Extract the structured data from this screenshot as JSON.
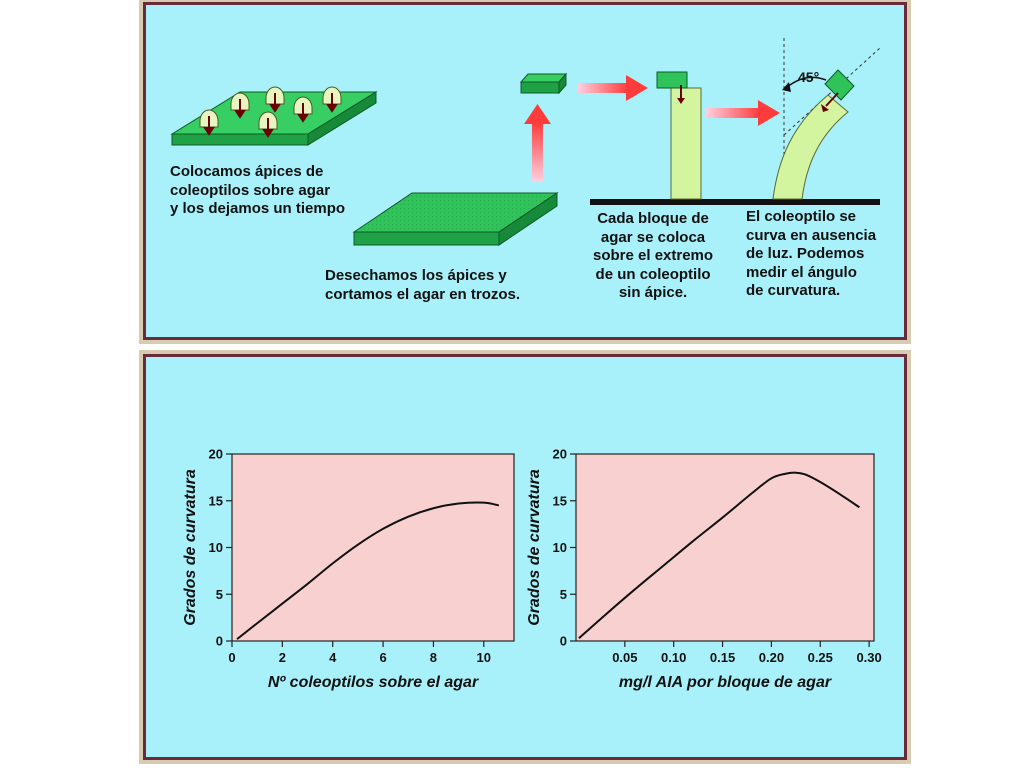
{
  "top_panel": {
    "step1_text": "Colocamos ápices de\ncoleoptilos sobre agar\ny los dejamos un tiempo",
    "step2_text": "Desechamos los ápices y\ncortamos el agar en trozos.",
    "step3_text": "Cada bloque de\nagar se coloca\nsobre el extremo\nde un coleoptilo\nsin ápice.",
    "step4_text": "El coleoptilo se\ncurva en ausencia\nde luz. Podemos\nmedir el ángulo\nde curvatura.",
    "angle_label": "45°"
  },
  "colors": {
    "background": "#a9f1fa",
    "agar_green": "#2ec45a",
    "coleoptile": "#d4f5a0",
    "plot_area": "#f9d0d0",
    "arrow": "#ff3b3b",
    "border": "#6b2a3c"
  },
  "chart_data": [
    {
      "type": "line",
      "ylabel": "Grados de curvatura",
      "xlabel": "Nº coleoptilos sobre el agar",
      "xlim": [
        0,
        11.2
      ],
      "ylim": [
        0,
        20
      ],
      "xticks": [
        0,
        2,
        4,
        6,
        8,
        10
      ],
      "yticks": [
        0,
        5,
        10,
        15,
        20
      ],
      "series": [
        {
          "x": [
            0.2,
            1,
            2,
            3,
            4,
            5,
            6,
            7,
            8,
            9,
            10,
            10.6
          ],
          "y": [
            0.2,
            1.9,
            4.0,
            6.1,
            8.3,
            10.3,
            12.0,
            13.3,
            14.2,
            14.7,
            14.8,
            14.5
          ]
        }
      ]
    },
    {
      "type": "line",
      "ylabel": "Grados de curvatura",
      "xlabel": "mg/l AIA por bloque de agar",
      "xlim": [
        0,
        0.305
      ],
      "ylim": [
        0,
        20
      ],
      "xticks": [
        0.05,
        0.1,
        0.15,
        0.2,
        0.25,
        0.3
      ],
      "xtick_labels": [
        "0.05",
        "0.10",
        "0.15",
        "0.20",
        "0.25",
        "0.30"
      ],
      "yticks": [
        0,
        5,
        10,
        15,
        20
      ],
      "series": [
        {
          "x": [
            0.003,
            0.03,
            0.06,
            0.09,
            0.12,
            0.15,
            0.18,
            0.2,
            0.215,
            0.225,
            0.235,
            0.25,
            0.27,
            0.29
          ],
          "y": [
            0.3,
            2.8,
            5.5,
            8.1,
            10.7,
            13.2,
            15.8,
            17.4,
            17.9,
            18.0,
            17.8,
            17.0,
            15.7,
            14.3
          ]
        }
      ]
    }
  ]
}
